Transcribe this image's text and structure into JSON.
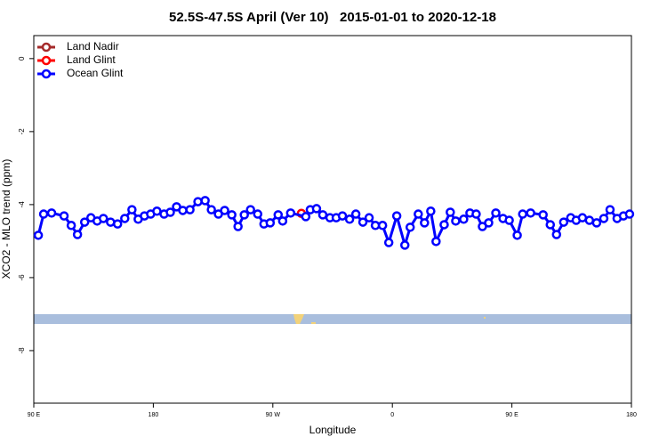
{
  "chart_data": {
    "type": "line",
    "title": "52.5S-47.5S April (Ver 10)   2015-01-01 to 2020-12-18",
    "x_label": "Longitude",
    "y_label": "XCO2 - MLO trend (ppm)",
    "xlim": [
      90,
      540
    ],
    "ylim": [
      -9.44,
      0.63
    ],
    "xticks": [
      {
        "value": 90,
        "label": "90 E"
      },
      180,
      {
        "value": 270,
        "label": "90 W"
      },
      {
        "value": 360,
        "label": "0"
      },
      {
        "value": 450,
        "label": "90 E"
      },
      {
        "value": 540,
        "label": "180"
      }
    ],
    "yticks": [
      0,
      -2,
      -4,
      -6,
      -8
    ],
    "legend": "top-left",
    "series": [
      {
        "name": "Land Nadir",
        "color": "#a52a2a",
        "x": [],
        "values": []
      },
      {
        "name": "Land Glint",
        "color": "#ff0000",
        "x": [
          291.5
        ],
        "values": [
          -4.24
        ]
      },
      {
        "name": "Ocean Glint",
        "color": "#0000ff",
        "x": [
          93.4,
          97.4,
          103.4,
          112.8,
          118.2,
          122.9,
          128.3,
          133.0,
          137.7,
          142.4,
          147.8,
          153.1,
          158.5,
          163.9,
          168.6,
          173.3,
          178.0,
          182.7,
          188.1,
          192.8,
          197.5,
          202.2,
          207.6,
          213.6,
          219.0,
          223.7,
          229.0,
          233.7,
          239.1,
          243.8,
          248.5,
          253.2,
          258.6,
          263.3,
          268.0,
          274.0,
          277.4,
          283.4,
          294.8,
          298.2,
          302.9,
          307.6,
          313.0,
          317.7,
          322.4,
          327.8,
          332.5,
          337.8,
          342.5,
          347.2,
          352.6,
          357.3,
          363.3,
          369.4,
          373.4,
          379.5,
          384.2,
          388.9,
          392.9,
          399.0,
          403.6,
          407.7,
          413.7,
          418.4,
          423.1,
          427.8,
          432.5,
          437.9,
          443.3,
          448.0,
          454.0,
          458.1,
          464.1,
          473.5,
          478.9,
          483.6,
          489.0,
          494.3,
          498.4,
          503.1,
          508.4,
          513.8,
          519.2,
          523.9,
          529.2,
          534.0,
          538.6
        ],
        "values": [
          -4.84,
          -4.26,
          -4.23,
          -4.31,
          -4.57,
          -4.82,
          -4.48,
          -4.36,
          -4.45,
          -4.38,
          -4.48,
          -4.53,
          -4.38,
          -4.14,
          -4.4,
          -4.31,
          -4.26,
          -4.18,
          -4.26,
          -4.21,
          -4.06,
          -4.16,
          -4.14,
          -3.92,
          -3.89,
          -4.14,
          -4.26,
          -4.16,
          -4.28,
          -4.6,
          -4.28,
          -4.14,
          -4.26,
          -4.53,
          -4.5,
          -4.28,
          -4.45,
          -4.23,
          -4.33,
          -4.14,
          -4.11,
          -4.28,
          -4.36,
          -4.36,
          -4.31,
          -4.4,
          -4.26,
          -4.48,
          -4.36,
          -4.57,
          -4.57,
          -5.04,
          -4.31,
          -5.11,
          -4.62,
          -4.26,
          -4.5,
          -4.18,
          -5.01,
          -4.55,
          -4.21,
          -4.45,
          -4.4,
          -4.23,
          -4.26,
          -4.6,
          -4.5,
          -4.23,
          -4.38,
          -4.43,
          -4.84,
          -4.26,
          -4.23,
          -4.28,
          -4.55,
          -4.82,
          -4.48,
          -4.36,
          -4.43,
          -4.36,
          -4.43,
          -4.5,
          -4.38,
          -4.14,
          -4.38,
          -4.31,
          -4.26
        ]
      }
    ]
  }
}
